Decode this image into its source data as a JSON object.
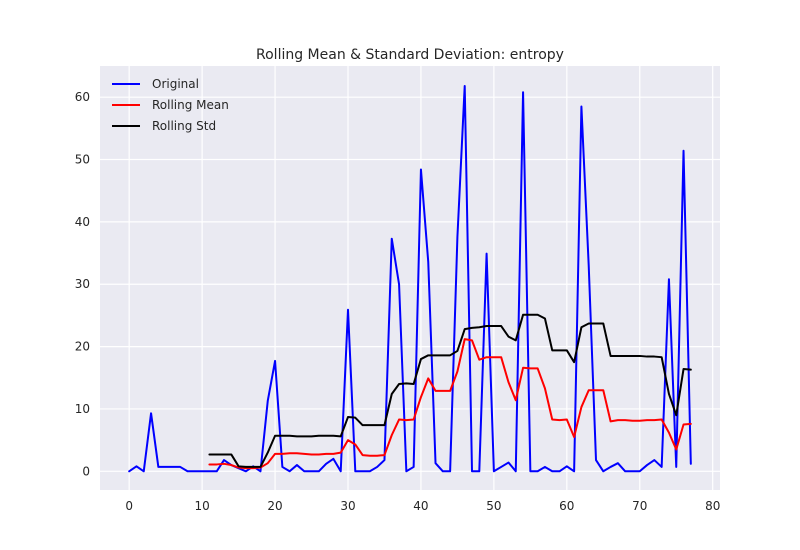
{
  "chart_data": {
    "type": "line",
    "title": "Rolling Mean & Standard Deviation: entropy",
    "xlabel": "",
    "ylabel": "",
    "xlim": [
      -4,
      81
    ],
    "ylim": [
      -3,
      65
    ],
    "xticks": [
      0,
      10,
      20,
      30,
      40,
      50,
      60,
      70,
      80
    ],
    "yticks": [
      0,
      10,
      20,
      30,
      40,
      50,
      60
    ],
    "grid": true,
    "legend_position": "top-left",
    "series": [
      {
        "name": "Original",
        "color": "#0000ff",
        "x": [
          0,
          1,
          2,
          3,
          4,
          5,
          6,
          7,
          8,
          9,
          10,
          11,
          12,
          13,
          14,
          15,
          16,
          17,
          18,
          19,
          20,
          21,
          22,
          23,
          24,
          25,
          26,
          27,
          28,
          29,
          30,
          31,
          32,
          33,
          34,
          35,
          36,
          37,
          38,
          39,
          40,
          41,
          42,
          43,
          44,
          45,
          46,
          47,
          48,
          49,
          50,
          51,
          52,
          53,
          54,
          55,
          56,
          57,
          58,
          59,
          60,
          61,
          62,
          63,
          64,
          65,
          66,
          67,
          68,
          69,
          70,
          71,
          72,
          73,
          74,
          75,
          76,
          77
        ],
        "y": [
          0,
          0.8,
          0,
          9.3,
          0.7,
          0.7,
          0.7,
          0.7,
          0,
          0,
          0,
          0,
          0,
          1.8,
          1.0,
          0.5,
          0,
          0.8,
          0,
          11.3,
          17.7,
          0.7,
          0,
          1.0,
          0,
          0,
          0,
          1.2,
          2.0,
          0,
          25.9,
          0,
          0,
          0,
          0.7,
          1.8,
          37.3,
          30.0,
          0,
          0.7,
          48.4,
          33.6,
          1.3,
          0,
          0,
          37.6,
          61.8,
          0,
          0,
          34.9,
          0,
          0.7,
          1.4,
          0,
          60.8,
          0,
          0,
          0.7,
          0,
          0,
          0.8,
          0,
          58.5,
          33.0,
          1.8,
          0,
          0.7,
          1.3,
          0,
          0,
          0,
          1.0,
          1.8,
          0.7,
          30.8,
          0.7,
          51.4,
          1.2
        ]
      },
      {
        "name": "Rolling Mean",
        "color": "#ff0000",
        "x": [
          11,
          12,
          13,
          14,
          15,
          16,
          17,
          18,
          19,
          20,
          21,
          22,
          23,
          24,
          25,
          26,
          27,
          28,
          29,
          30,
          31,
          32,
          33,
          34,
          35,
          36,
          37,
          38,
          39,
          40,
          41,
          42,
          43,
          44,
          45,
          46,
          47,
          48,
          49,
          50,
          51,
          52,
          53,
          54,
          55,
          56,
          57,
          58,
          59,
          60,
          61,
          62,
          63,
          64,
          65,
          66,
          67,
          68,
          69,
          70,
          71,
          72,
          73,
          74,
          75,
          76,
          77
        ],
        "y": [
          1.1,
          1.1,
          1.2,
          1.0,
          0.6,
          0.5,
          0.5,
          0.6,
          1.3,
          2.8,
          2.8,
          2.9,
          2.9,
          2.8,
          2.7,
          2.7,
          2.8,
          2.8,
          3.0,
          5.0,
          4.3,
          2.6,
          2.5,
          2.5,
          2.6,
          5.8,
          8.3,
          8.2,
          8.3,
          11.9,
          14.9,
          12.9,
          12.9,
          12.9,
          16.0,
          21.2,
          21.0,
          17.9,
          18.3,
          18.3,
          18.3,
          14.3,
          11.4,
          16.6,
          16.5,
          16.5,
          13.3,
          8.3,
          8.2,
          8.3,
          5.5,
          10.3,
          13.0,
          13.0,
          13.0,
          8.0,
          8.2,
          8.2,
          8.1,
          8.1,
          8.2,
          8.2,
          8.3,
          6.2,
          3.5,
          7.5,
          7.6
        ]
      },
      {
        "name": "Rolling Std",
        "color": "#000000",
        "x": [
          11,
          12,
          13,
          14,
          15,
          16,
          17,
          18,
          19,
          20,
          21,
          22,
          23,
          24,
          25,
          26,
          27,
          28,
          29,
          30,
          31,
          32,
          33,
          34,
          35,
          36,
          37,
          38,
          39,
          40,
          41,
          42,
          43,
          44,
          45,
          46,
          47,
          48,
          49,
          50,
          51,
          52,
          53,
          54,
          55,
          56,
          57,
          58,
          59,
          60,
          61,
          62,
          63,
          64,
          65,
          66,
          67,
          68,
          69,
          70,
          71,
          72,
          73,
          74,
          75,
          76,
          77
        ],
        "y": [
          2.7,
          2.7,
          2.7,
          2.7,
          0.8,
          0.7,
          0.7,
          0.7,
          3.0,
          5.7,
          5.7,
          5.7,
          5.6,
          5.6,
          5.6,
          5.7,
          5.7,
          5.7,
          5.6,
          8.7,
          8.6,
          7.4,
          7.4,
          7.4,
          7.4,
          12.4,
          14.0,
          14.1,
          14.0,
          18.0,
          18.6,
          18.6,
          18.6,
          18.6,
          19.3,
          22.8,
          23.0,
          23.1,
          23.3,
          23.3,
          23.3,
          21.6,
          21.0,
          25.1,
          25.1,
          25.1,
          24.5,
          19.4,
          19.4,
          19.4,
          17.5,
          23.1,
          23.7,
          23.7,
          23.7,
          18.5,
          18.5,
          18.5,
          18.5,
          18.5,
          18.4,
          18.4,
          18.3,
          12.4,
          9.0,
          16.4,
          16.3
        ]
      }
    ]
  }
}
